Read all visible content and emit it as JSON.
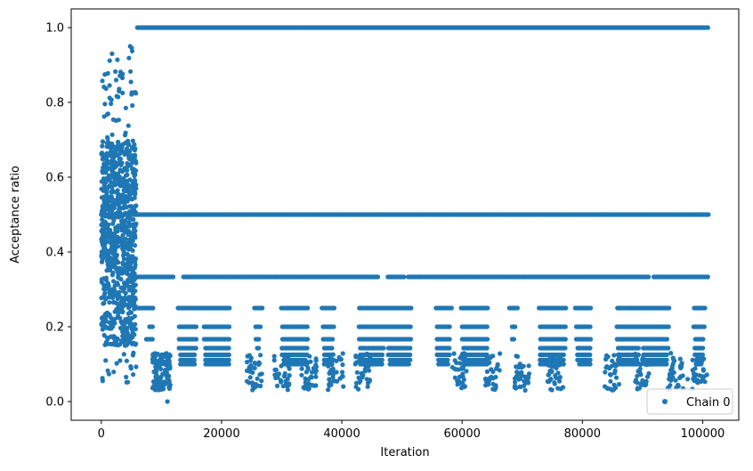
{
  "chart_data": {
    "type": "scatter",
    "title": "",
    "xlabel": "Iteration",
    "ylabel": "Acceptance ratio",
    "xlim": [
      -5000,
      106000
    ],
    "ylim": [
      -0.05,
      1.05
    ],
    "xticks": [
      0,
      20000,
      40000,
      60000,
      80000,
      100000
    ],
    "xtick_labels": [
      "0",
      "20000",
      "40000",
      "60000",
      "80000",
      "100000"
    ],
    "yticks": [
      0.0,
      0.2,
      0.4,
      0.6,
      0.8,
      1.0
    ],
    "ytick_labels": [
      "0.0",
      "0.2",
      "0.4",
      "0.6",
      "0.8",
      "1.0"
    ],
    "grid": false,
    "legend_position": "bottom-right",
    "marker": "circle",
    "series": [
      {
        "name": "Chain 0",
        "color": "#1f77b4",
        "summary": "Dense scatter of acceptance ratios over ~101000 iterations. First ~5500 iterations spread continuously between ~0.05 and ~0.95; afterwards values lie on discrete levels 1.0, 1/2, 1/3, 1/4, 1/5, 1/6, 1/7, 1/8 ... with sparse low-value clusters.",
        "bands": [
          {
            "y": 1.0,
            "x_start": 6000,
            "x_end": 101000
          },
          {
            "y": 0.5,
            "x_start": 0,
            "x_end": 101000
          },
          {
            "y": 0.3333,
            "x_start": 6000,
            "x_end": 101000
          },
          {
            "y": 0.25,
            "x_start": 6000,
            "x_end": 101000
          },
          {
            "y": 0.2,
            "x_start": 8000,
            "x_end": 101000
          },
          {
            "y": 0.1667,
            "x_start": 7500,
            "x_end": 101000
          },
          {
            "y": 0.1429,
            "x_start": 9000,
            "x_end": 101000
          },
          {
            "y": 0.125,
            "x_start": 9000,
            "x_end": 101000
          },
          {
            "y": 0.1111,
            "x_start": 9000,
            "x_end": 101000
          },
          {
            "y": 0.1,
            "x_start": 9000,
            "x_end": 101000
          }
        ],
        "initial_cloud": {
          "x_range": [
            0,
            5800
          ],
          "y_range": [
            0.05,
            0.95
          ]
        },
        "sample_points": [
          {
            "x": 4800,
            "y": 0.95
          },
          {
            "x": 1800,
            "y": 0.93
          },
          {
            "x": 11000,
            "y": 0.0
          },
          {
            "x": 71000,
            "y": 0.05
          },
          {
            "x": 60000,
            "y": 0.05
          },
          {
            "x": 34500,
            "y": 0.06
          },
          {
            "x": 97500,
            "y": 0.06
          }
        ]
      }
    ]
  }
}
